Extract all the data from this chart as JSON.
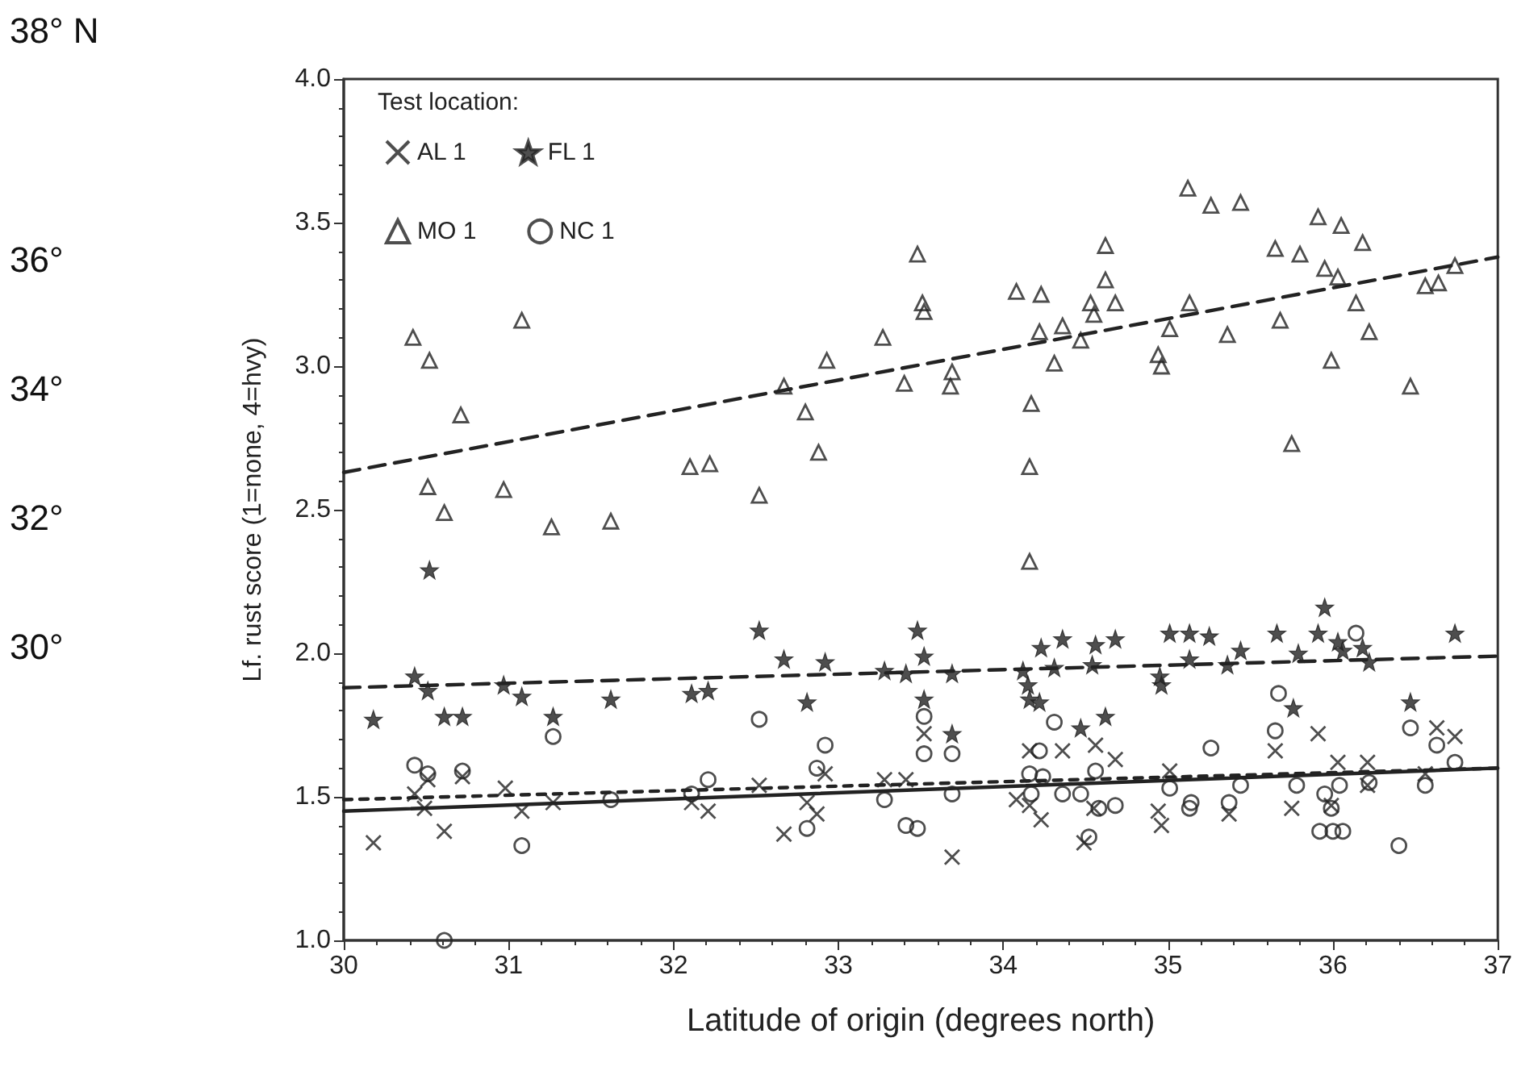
{
  "chart_data": {
    "type": "scatter",
    "xlabel": "Latitude of origin (degrees north)",
    "ylabel": "Lf. rust score (1=none, 4=hvy)",
    "legend_title": "Test location:",
    "legend": "top left",
    "grid": false,
    "xlim": [
      30,
      37
    ],
    "xticks": [
      30,
      31,
      32,
      33,
      34,
      35,
      36,
      37
    ],
    "ylim": [
      1,
      4
    ],
    "yticks": [
      {
        "value": 1,
        "label": "1.0"
      },
      {
        "value": 1.5,
        "label": "1.5"
      },
      {
        "value": 2,
        "label": "2.0"
      },
      {
        "value": 2.5,
        "label": "2.5"
      },
      {
        "value": 3,
        "label": "3.0"
      },
      {
        "value": 3.5,
        "label": "3.5"
      },
      {
        "value": 4,
        "label": "4.0"
      }
    ],
    "annotations": [
      "38° N",
      "36°",
      "34°",
      "32°",
      "30°"
    ],
    "series": [
      {
        "name": "AL 1",
        "color": "#222222",
        "marker": "cross",
        "x": [
          30.18,
          30.43,
          30.51,
          30.49,
          30.61,
          30.72,
          30.98,
          31.08,
          31.27,
          32.11,
          32.21,
          32.52,
          32.67,
          32.81,
          32.87,
          32.92,
          33.28,
          33.41,
          33.52,
          33.69,
          34.16,
          34.08,
          34.16,
          34.23,
          34.36,
          34.49,
          34.56,
          34.55,
          34.68,
          34.94,
          34.96,
          35.01,
          35.37,
          35.65,
          35.75,
          35.91,
          35.99,
          36.03,
          36.21,
          36.21,
          36.63,
          36.74,
          36.56
        ],
        "values": [
          1.34,
          1.51,
          1.56,
          1.46,
          1.38,
          1.57,
          1.53,
          1.45,
          1.48,
          1.48,
          1.45,
          1.54,
          1.37,
          1.48,
          1.44,
          1.58,
          1.56,
          1.56,
          1.72,
          1.29,
          1.66,
          1.49,
          1.47,
          1.42,
          1.66,
          1.34,
          1.68,
          1.46,
          1.63,
          1.45,
          1.4,
          1.59,
          1.44,
          1.66,
          1.46,
          1.72,
          1.47,
          1.62,
          1.62,
          1.54,
          1.74,
          1.71,
          1.58
        ]
      },
      {
        "name": "FL 1",
        "color": "#222222",
        "marker": "star",
        "x": [
          30.52,
          30.18,
          30.43,
          30.51,
          30.61,
          30.72,
          30.97,
          31.08,
          31.27,
          31.62,
          32.11,
          32.21,
          32.52,
          32.67,
          32.81,
          32.92,
          33.28,
          33.41,
          33.48,
          33.52,
          33.52,
          33.69,
          33.69,
          34.12,
          34.15,
          34.16,
          34.22,
          34.23,
          34.31,
          34.36,
          34.47,
          34.56,
          34.54,
          34.62,
          34.68,
          34.95,
          34.96,
          35.01,
          35.13,
          35.25,
          35.13,
          35.36,
          35.44,
          35.66,
          35.76,
          35.79,
          35.91,
          35.95,
          36.03,
          36.06,
          36.18,
          36.22,
          36.47,
          36.74
        ],
        "values": [
          2.29,
          1.77,
          1.92,
          1.87,
          1.78,
          1.78,
          1.89,
          1.85,
          1.78,
          1.84,
          1.86,
          1.87,
          2.08,
          1.98,
          1.83,
          1.97,
          1.94,
          1.93,
          2.08,
          1.99,
          1.84,
          1.72,
          1.93,
          1.94,
          1.89,
          1.84,
          1.83,
          2.02,
          1.95,
          2.05,
          1.74,
          2.03,
          1.96,
          1.78,
          2.05,
          1.92,
          1.89,
          2.07,
          2.07,
          2.06,
          1.98,
          1.96,
          2.01,
          2.07,
          1.81,
          2,
          2.07,
          2.16,
          2.04,
          2.01,
          2.02,
          1.97,
          1.83,
          2.07
        ]
      },
      {
        "name": "MO 1",
        "color": "#222222",
        "marker": "triangle",
        "x": [
          30.42,
          30.52,
          31.08,
          30.71,
          30.51,
          30.61,
          30.97,
          31.26,
          31.62,
          32.1,
          32.22,
          32.52,
          32.67,
          32.8,
          32.88,
          32.93,
          33.27,
          33.4,
          33.48,
          33.51,
          33.52,
          33.69,
          33.68,
          34.08,
          34.23,
          34.17,
          34.16,
          34.16,
          34.22,
          34.31,
          34.36,
          34.47,
          34.53,
          34.55,
          34.62,
          34.62,
          34.68,
          34.94,
          34.96,
          35.01,
          35.13,
          35.12,
          35.26,
          35.44,
          35.36,
          35.65,
          35.68,
          35.75,
          35.8,
          35.91,
          35.95,
          35.99,
          36.03,
          36.05,
          36.14,
          36.18,
          36.22,
          36.47,
          36.56,
          36.64,
          36.74
        ],
        "values": [
          3.1,
          3.02,
          3.16,
          2.83,
          2.58,
          2.49,
          2.57,
          2.44,
          2.46,
          2.65,
          2.66,
          2.55,
          2.93,
          2.84,
          2.7,
          3.02,
          3.1,
          2.94,
          3.39,
          3.22,
          3.19,
          2.98,
          2.93,
          3.26,
          3.25,
          2.87,
          2.65,
          2.32,
          3.12,
          3.01,
          3.14,
          3.09,
          3.22,
          3.18,
          3.42,
          3.3,
          3.22,
          3.04,
          3,
          3.13,
          3.22,
          3.62,
          3.56,
          3.57,
          3.11,
          3.41,
          3.16,
          2.73,
          3.39,
          3.52,
          3.34,
          3.02,
          3.31,
          3.49,
          3.22,
          3.43,
          3.12,
          2.93,
          3.28,
          3.29,
          3.35
        ]
      },
      {
        "name": "NC 1",
        "color": "#222222",
        "marker": "circle",
        "x": [
          30.43,
          30.51,
          30.72,
          30.61,
          31.08,
          31.27,
          31.62,
          32.11,
          32.21,
          32.52,
          32.81,
          32.87,
          32.92,
          33.28,
          33.41,
          33.48,
          33.52,
          33.52,
          33.69,
          33.69,
          34.16,
          34.22,
          34.17,
          34.24,
          34.31,
          34.36,
          34.47,
          34.52,
          34.56,
          34.68,
          34.58,
          35.01,
          35.14,
          35.13,
          35.26,
          35.37,
          35.44,
          35.67,
          35.65,
          35.78,
          35.95,
          35.92,
          35.99,
          36,
          36.06,
          36.04,
          36.14,
          36.22,
          36.4,
          36.47,
          36.56,
          36.63,
          36.74
        ],
        "values": [
          1.61,
          1.58,
          1.59,
          1,
          1.33,
          1.71,
          1.49,
          1.51,
          1.56,
          1.77,
          1.39,
          1.6,
          1.68,
          1.49,
          1.4,
          1.39,
          1.78,
          1.65,
          1.65,
          1.51,
          1.58,
          1.66,
          1.51,
          1.57,
          1.76,
          1.51,
          1.51,
          1.36,
          1.59,
          1.47,
          1.46,
          1.53,
          1.48,
          1.46,
          1.67,
          1.48,
          1.54,
          1.86,
          1.73,
          1.54,
          1.51,
          1.38,
          1.46,
          1.38,
          1.38,
          1.54,
          2.07,
          1.55,
          1.33,
          1.74,
          1.54,
          1.68,
          1.62
        ]
      },
      {
        "type": "line",
        "color": "#222222",
        "line_style": "solid",
        "marker": "none",
        "x": [
          30,
          37
        ],
        "values": [
          1.45,
          1.6
        ]
      },
      {
        "type": "line",
        "color": "#222222",
        "line_style": "dashed",
        "marker": "none",
        "x": [
          30,
          37
        ],
        "values": [
          1.88,
          1.99
        ]
      },
      {
        "type": "line",
        "color": "#222222",
        "line_style": "dashed",
        "marker": "none",
        "x": [
          30,
          37
        ],
        "values": [
          2.63,
          3.38
        ]
      },
      {
        "type": "line",
        "color": "#222222",
        "line_style": "dotted",
        "marker": "none",
        "x": [
          30,
          37
        ],
        "values": [
          1.49,
          1.6
        ]
      }
    ]
  }
}
